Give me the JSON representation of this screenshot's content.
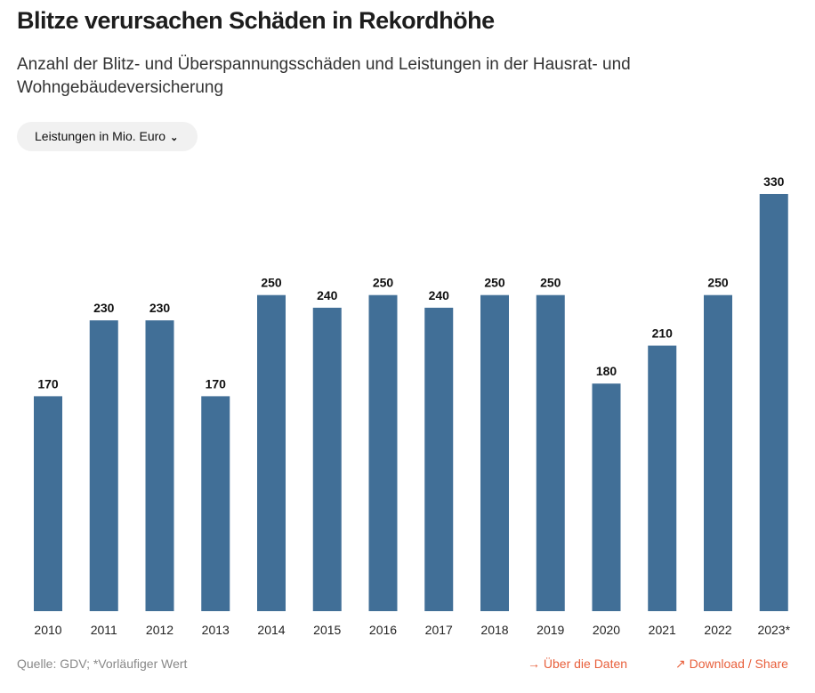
{
  "header": {
    "title": "Blitze verursachen Schäden in Rekordhöhe",
    "subtitle": "Anzahl der Blitz- und Überspannungsschäden und Leistungen in der Hausrat- und Wohngebäudeversicherung"
  },
  "selector": {
    "selected": "Leistungen in Mio. Euro",
    "icon": "chevron-down-icon"
  },
  "chart_data": {
    "type": "bar",
    "categories": [
      "2010",
      "2011",
      "2012",
      "2013",
      "2014",
      "2015",
      "2016",
      "2017",
      "2018",
      "2019",
      "2020",
      "2021",
      "2022",
      "2023*"
    ],
    "values": [
      170,
      230,
      230,
      170,
      250,
      240,
      250,
      240,
      250,
      250,
      180,
      210,
      250,
      330
    ],
    "ylim": [
      0,
      330
    ],
    "grid": false,
    "bar_color": "#416f97",
    "ylabel": "Leistungen in Mio. Euro"
  },
  "footer": {
    "source": "Quelle: GDV; *Vorläufiger Wert",
    "about": "→ Über die Daten",
    "download": "↗ Download / Share",
    "link_color": "#e8603c"
  }
}
